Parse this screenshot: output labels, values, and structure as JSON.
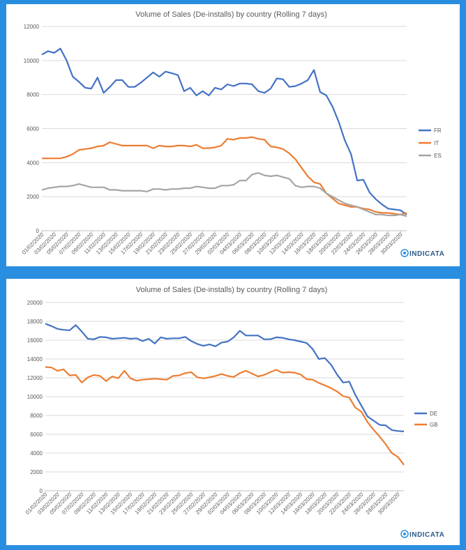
{
  "chart_data": [
    {
      "type": "line",
      "title": "Volume of Sales (De-installs) by country (Rolling 7 days)",
      "xlabel": "",
      "ylabel": "",
      "ylim": [
        0,
        12000
      ],
      "yticks": [
        0,
        2000,
        4000,
        6000,
        8000,
        10000,
        12000
      ],
      "grid": true,
      "legend": "right",
      "logo": "INDICATA",
      "x_tick_labels": [
        "01/02/2020",
        "03/02/2020",
        "05/02/2020",
        "07/02/2020",
        "09/02/2020",
        "11/02/2020",
        "13/02/2020",
        "15/02/2020",
        "17/02/2020",
        "19/02/2020",
        "21/02/2020",
        "23/02/2020",
        "25/02/2020",
        "27/02/2020",
        "29/02/2020",
        "02/03/2020",
        "04/03/2020",
        "06/03/2020",
        "08/03/2020",
        "10/03/2020",
        "12/03/2020",
        "14/03/2020",
        "16/03/2020",
        "18/03/2020",
        "20/03/2020",
        "22/03/2020",
        "24/03/2020",
        "26/03/2020",
        "28/03/2020",
        "30/03/2020"
      ],
      "series": [
        {
          "name": "FR",
          "color": "#4472c4",
          "values": [
            10350,
            10550,
            10450,
            10700,
            10000,
            9050,
            8750,
            8400,
            8350,
            9000,
            8100,
            8450,
            8850,
            8850,
            8450,
            8450,
            8700,
            9000,
            9300,
            9050,
            9350,
            9250,
            9150,
            8200,
            8400,
            7950,
            8200,
            7950,
            8400,
            8300,
            8600,
            8500,
            8650,
            8650,
            8600,
            8200,
            8100,
            8350,
            8950,
            8900,
            8450,
            8500,
            8650,
            8850,
            9450,
            8150,
            7950,
            7300,
            6400,
            5300,
            4500,
            2950,
            3000,
            2250,
            1850,
            1550,
            1300,
            1250,
            1200,
            950
          ]
        },
        {
          "name": "IT",
          "color": "#ed7d31",
          "values": [
            4250,
            4250,
            4250,
            4250,
            4350,
            4500,
            4750,
            4800,
            4850,
            4950,
            5000,
            5200,
            5100,
            5000,
            5000,
            5000,
            5000,
            5000,
            4850,
            5000,
            4950,
            4950,
            5000,
            5000,
            4950,
            5050,
            4850,
            4850,
            4900,
            5000,
            5400,
            5350,
            5450,
            5450,
            5500,
            5400,
            5350,
            4950,
            4900,
            4800,
            4550,
            4200,
            3700,
            3200,
            2850,
            2750,
            2200,
            1900,
            1600,
            1500,
            1400,
            1400,
            1300,
            1250,
            1100,
            1050,
            1050,
            1000,
            950,
            1050
          ]
        },
        {
          "name": "ES",
          "color": "#a5a5a5",
          "values": [
            2400,
            2500,
            2550,
            2600,
            2600,
            2650,
            2750,
            2650,
            2550,
            2550,
            2550,
            2400,
            2400,
            2350,
            2350,
            2350,
            2350,
            2300,
            2450,
            2450,
            2400,
            2450,
            2450,
            2500,
            2500,
            2600,
            2550,
            2500,
            2500,
            2650,
            2650,
            2700,
            2950,
            2950,
            3300,
            3400,
            3250,
            3200,
            3250,
            3150,
            3050,
            2650,
            2550,
            2600,
            2600,
            2500,
            2200,
            2000,
            1800,
            1600,
            1500,
            1400,
            1250,
            1100,
            950,
            950,
            900,
            900,
            950,
            850
          ]
        }
      ]
    },
    {
      "type": "line",
      "title": "Volume of Sales (De-installs) by country (Rolling 7 days)",
      "xlabel": "",
      "ylabel": "",
      "ylim": [
        0,
        20000
      ],
      "yticks": [
        0,
        2000,
        4000,
        6000,
        8000,
        10000,
        12000,
        14000,
        16000,
        18000,
        20000
      ],
      "grid": true,
      "legend": "right",
      "logo": "INDICATA",
      "x_tick_labels": [
        "01/02/2020",
        "03/02/2020",
        "05/02/2020",
        "07/02/2020",
        "09/02/2020",
        "11/02/2020",
        "13/02/2020",
        "15/02/2020",
        "17/02/2020",
        "19/02/2020",
        "21/02/2020",
        "23/02/2020",
        "25/02/2020",
        "27/02/2020",
        "29/02/2020",
        "02/03/2020",
        "04/03/2020",
        "06/03/2020",
        "08/03/2020",
        "10/03/2020",
        "12/03/2020",
        "14/03/2020",
        "16/03/2020",
        "18/03/2020",
        "20/03/2020",
        "22/03/2020",
        "24/03/2020",
        "26/03/2020",
        "28/03/2020",
        "30/03/2020"
      ],
      "series": [
        {
          "name": "DE",
          "color": "#4472c4",
          "values": [
            17750,
            17500,
            17200,
            17100,
            17050,
            17600,
            16900,
            16150,
            16100,
            16350,
            16300,
            16150,
            16200,
            16250,
            16150,
            16200,
            15900,
            16150,
            15650,
            16300,
            16150,
            16200,
            16200,
            16350,
            15900,
            15600,
            15400,
            15550,
            15350,
            15750,
            15850,
            16300,
            17000,
            16500,
            16500,
            16500,
            16100,
            16100,
            16300,
            16250,
            16100,
            16000,
            15850,
            15700,
            15050,
            14000,
            14100,
            13400,
            12350,
            11500,
            11600,
            10200,
            9050,
            7900,
            7450,
            7000,
            6950,
            6450,
            6350,
            6300
          ]
        },
        {
          "name": "GB",
          "color": "#ed7d31",
          "values": [
            13150,
            13100,
            12750,
            12900,
            12250,
            12300,
            11500,
            12050,
            12300,
            12200,
            11650,
            12150,
            11950,
            12750,
            11950,
            11700,
            11800,
            11850,
            11900,
            11850,
            11800,
            12200,
            12250,
            12500,
            12600,
            12050,
            11950,
            12050,
            12200,
            12400,
            12200,
            12100,
            12500,
            12750,
            12450,
            12150,
            12300,
            12600,
            12850,
            12550,
            12600,
            12550,
            12350,
            11850,
            11800,
            11450,
            11200,
            10900,
            10550,
            10050,
            9900,
            8850,
            8400,
            7300,
            6500,
            5750,
            4950,
            4000,
            3600,
            2750
          ]
        }
      ]
    }
  ]
}
